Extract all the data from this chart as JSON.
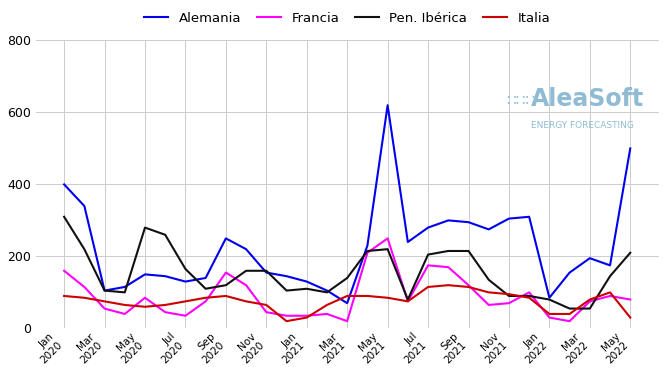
{
  "series": {
    "Alemania": {
      "color": "#0000ee",
      "values": [
        400,
        340,
        105,
        115,
        150,
        145,
        130,
        140,
        250,
        220,
        155,
        145,
        130,
        105,
        70,
        230,
        620,
        240,
        280,
        300,
        295,
        275,
        305,
        310,
        85,
        155,
        195,
        175,
        500
      ]
    },
    "Francia": {
      "color": "#ff00ff",
      "values": [
        160,
        115,
        55,
        40,
        85,
        45,
        35,
        75,
        155,
        120,
        45,
        35,
        35,
        40,
        20,
        210,
        250,
        75,
        175,
        170,
        120,
        65,
        70,
        100,
        30,
        20,
        75,
        90,
        80
      ]
    },
    "Pen. Ibérica": {
      "color": "#111111",
      "values": [
        310,
        220,
        105,
        100,
        280,
        260,
        165,
        110,
        120,
        160,
        160,
        105,
        110,
        100,
        140,
        215,
        220,
        80,
        205,
        215,
        215,
        135,
        90,
        90,
        80,
        55,
        55,
        145,
        210
      ]
    },
    "Italia": {
      "color": "#cc0000",
      "values": [
        90,
        85,
        75,
        65,
        60,
        65,
        75,
        85,
        90,
        75,
        65,
        20,
        30,
        65,
        90,
        90,
        85,
        75,
        115,
        120,
        115,
        100,
        95,
        85,
        40,
        40,
        80,
        100,
        30
      ]
    }
  },
  "legend_labels": [
    "Alemania",
    "Francia",
    "Pen. Ibérica",
    "Italia"
  ],
  "n_points": 29,
  "start_month": 0,
  "start_year": 2020,
  "tick_step": 2,
  "ylim": [
    0,
    800
  ],
  "yticks": [
    0,
    200,
    400,
    600,
    800
  ],
  "background_color": "#ffffff",
  "grid_color": "#cccccc",
  "watermark_text": "AleaSoft",
  "watermark_sub": "ENERGY FORECASTING",
  "watermark_color": "#90bbd4"
}
